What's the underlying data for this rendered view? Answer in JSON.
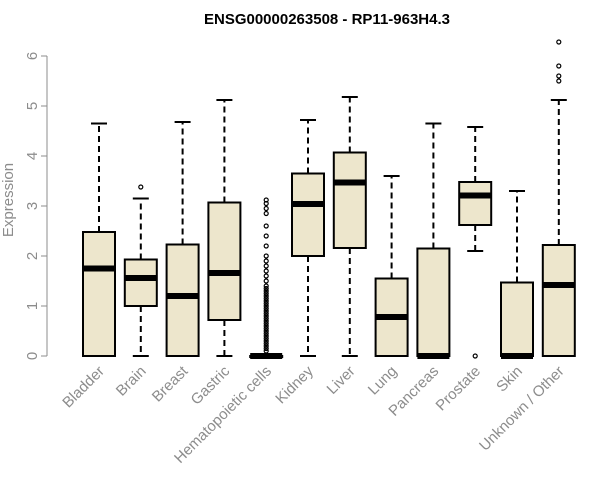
{
  "chart_data": {
    "type": "boxplot",
    "title": "ENSG00000263508 - RP11-963H4.3",
    "ylabel": "Expression",
    "xlabel": "",
    "ylim": [
      0,
      6.3
    ],
    "yticks": [
      0,
      1,
      2,
      3,
      4,
      5,
      6
    ],
    "categories": [
      "Bladder",
      "Brain",
      "Breast",
      "Gastric",
      "Hematopoietic cells",
      "Kidney",
      "Liver",
      "Lung",
      "Pancreas",
      "Prostate",
      "Skin",
      "Unknown / Other"
    ],
    "boxes": [
      {
        "min": 0,
        "q1": 0,
        "median": 1.75,
        "q3": 2.48,
        "max": 4.65,
        "outliers": []
      },
      {
        "min": 0,
        "q1": 1.0,
        "median": 1.56,
        "q3": 1.93,
        "max": 3.15,
        "outliers": [
          3.38
        ]
      },
      {
        "min": 0,
        "q1": 0,
        "median": 1.2,
        "q3": 2.23,
        "max": 4.68,
        "outliers": []
      },
      {
        "min": 0,
        "q1": 0.72,
        "median": 1.66,
        "q3": 3.07,
        "max": 5.12,
        "outliers": []
      },
      {
        "min": 0,
        "q1": 0,
        "median": 0,
        "q3": 0,
        "max": 0,
        "outliers": [
          0.1,
          0.15,
          0.2,
          0.25,
          0.3,
          0.35,
          0.4,
          0.45,
          0.5,
          0.55,
          0.6,
          0.65,
          0.7,
          0.75,
          0.8,
          0.85,
          0.9,
          0.95,
          1.0,
          1.05,
          1.1,
          1.15,
          1.2,
          1.25,
          1.3,
          1.35,
          1.4,
          1.5,
          1.6,
          1.7,
          1.8,
          1.9,
          2.0,
          2.2,
          2.4,
          2.6,
          2.85,
          2.95,
          3.05,
          3.12
        ]
      },
      {
        "min": 0,
        "q1": 2.0,
        "median": 3.04,
        "q3": 3.65,
        "max": 4.72,
        "outliers": []
      },
      {
        "min": 0,
        "q1": 2.16,
        "median": 3.47,
        "q3": 4.07,
        "max": 5.18,
        "outliers": []
      },
      {
        "min": 0,
        "q1": 0,
        "median": 0.78,
        "q3": 1.55,
        "max": 3.6,
        "outliers": []
      },
      {
        "min": 0,
        "q1": 0,
        "median": 0,
        "q3": 2.15,
        "max": 4.65,
        "outliers": []
      },
      {
        "min": 2.1,
        "q1": 2.62,
        "median": 3.21,
        "q3": 3.48,
        "max": 4.58,
        "outliers": [
          0
        ]
      },
      {
        "min": 0,
        "q1": 0,
        "median": 0,
        "q3": 1.47,
        "max": 3.3,
        "outliers": []
      },
      {
        "min": 0,
        "q1": 0,
        "median": 1.42,
        "q3": 2.22,
        "max": 5.12,
        "outliers": [
          5.5,
          5.6,
          5.8,
          6.28
        ]
      }
    ],
    "colors": {
      "box_fill": "#ede6cc",
      "box_stroke": "#000000",
      "axis": "#8c8c8c",
      "title": "#000000"
    }
  }
}
